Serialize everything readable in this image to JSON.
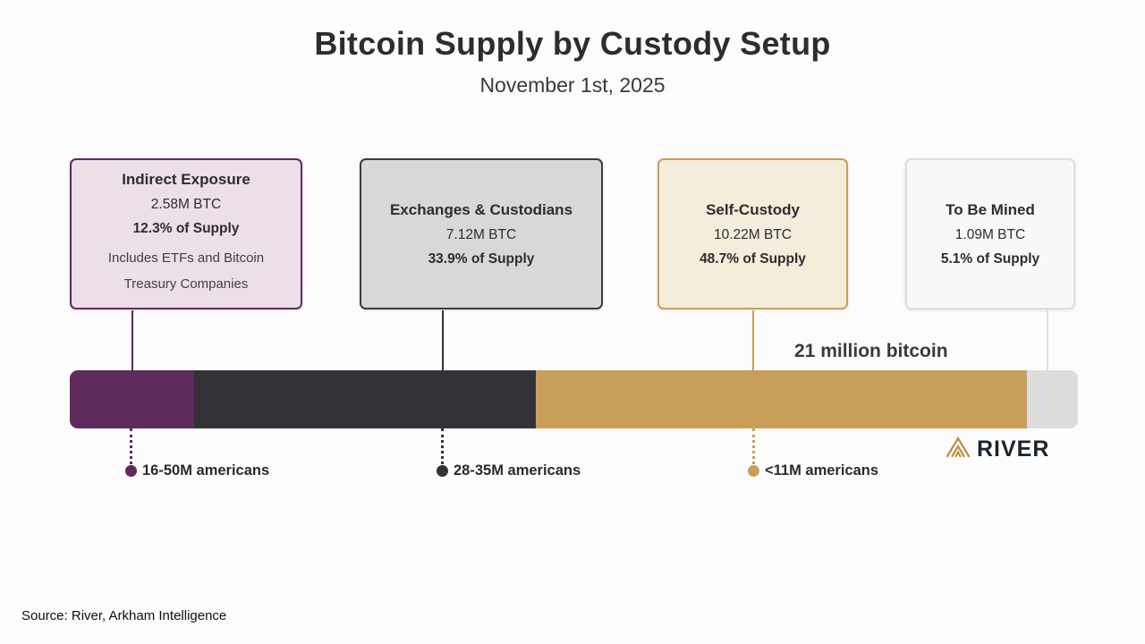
{
  "page": {
    "title": "Bitcoin Supply by Custody Setup",
    "subtitle": "November 1st, 2025",
    "source": "Source: River, Arkham Intelligence",
    "brand": "RIVER",
    "brand_icon_color": "#b98f3e"
  },
  "chart_data": {
    "type": "bar",
    "title": "Bitcoin Supply by Custody Setup",
    "subtitle": "November 1st, 2025",
    "total_supply_label": "21 million bitcoin",
    "total_supply_btc_millions": 21,
    "unit": "M BTC",
    "grid": false,
    "legend_position": "none",
    "segments": [
      {
        "name": "Indirect Exposure",
        "btc_label": "2.58M BTC",
        "btc_millions": 2.58,
        "supply_label": "12.3% of Supply",
        "supply_percent": 12.3,
        "note": "Includes ETFs and Bitcoin Treasury Companies",
        "color": "#5e2b5c",
        "card_bg": "#ecdfe9",
        "card_border": "#5e2b5c"
      },
      {
        "name": "Exchanges & Custodians",
        "btc_label": "7.12M BTC",
        "btc_millions": 7.12,
        "supply_label": "33.9% of Supply",
        "supply_percent": 33.9,
        "note": "",
        "color": "#343236",
        "card_bg": "#d8d8d8",
        "card_border": "#3c3a3d"
      },
      {
        "name": "Self-Custody",
        "btc_label": "10.22M BTC",
        "btc_millions": 10.22,
        "supply_label": "48.7% of Supply",
        "supply_percent": 48.7,
        "note": "",
        "color": "#c79f5b",
        "card_bg": "#f4eddc",
        "card_border": "#c79f5b"
      },
      {
        "name": "To Be Mined",
        "btc_label": "1.09M BTC",
        "btc_millions": 1.09,
        "supply_label": "5.1% of Supply",
        "supply_percent": 5.1,
        "note": "",
        "color": "#dddddd",
        "card_bg": "#f8f8f8",
        "card_border": "#dedede"
      }
    ],
    "annotations": [
      {
        "label": "16-50M americans",
        "color": "#5e2b5c"
      },
      {
        "label": "28-35M americans",
        "color": "#343236"
      },
      {
        "label": "<11M americans",
        "color": "#c79f5b"
      }
    ]
  }
}
